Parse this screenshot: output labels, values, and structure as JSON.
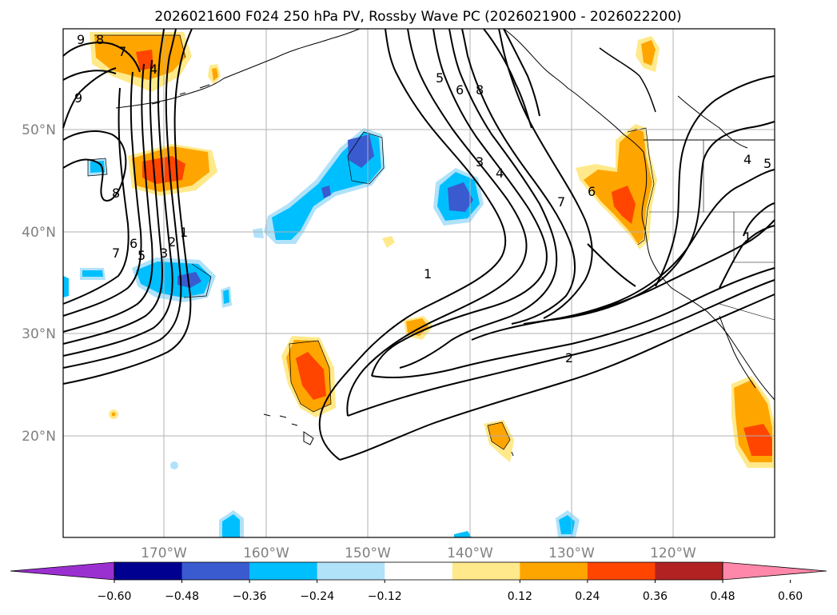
{
  "title": "2026021600 F024 250 hPa PV, Rossby Wave PC (2026021900 - 2026022200)",
  "lat_labels": [
    "50°N",
    "40°N",
    "30°N",
    "20°N"
  ],
  "lon_labels": [
    "170°W",
    "160°W",
    "150°W",
    "140°W",
    "130°W",
    "120°W"
  ],
  "contour_labels": [
    "1",
    "2",
    "3",
    "4",
    "5",
    "6",
    "7",
    "8",
    "9"
  ],
  "colorbar": {
    "tick_labels": [
      "−0.60",
      "−0.48",
      "−0.36",
      "−0.24",
      "−0.12",
      "0.12",
      "0.24",
      "0.36",
      "0.48",
      "0.60"
    ],
    "colors": [
      "#9b30d0",
      "#000090",
      "#3a5bd0",
      "#00bfff",
      "#b0e2fa",
      "#ffffff",
      "#ffe98a",
      "#ffa500",
      "#ff4500",
      "#b22222",
      "#ff88aa"
    ]
  },
  "colors": {
    "positive_light": "#ffe98a",
    "positive_mid": "#ffa500",
    "positive_strong": "#ff4500",
    "negative_light": "#b0e2fa",
    "negative_mid": "#00bfff",
    "negative_strong": "#3a5bd0",
    "contour": "#000000",
    "grid": "#b0b0b0"
  }
}
